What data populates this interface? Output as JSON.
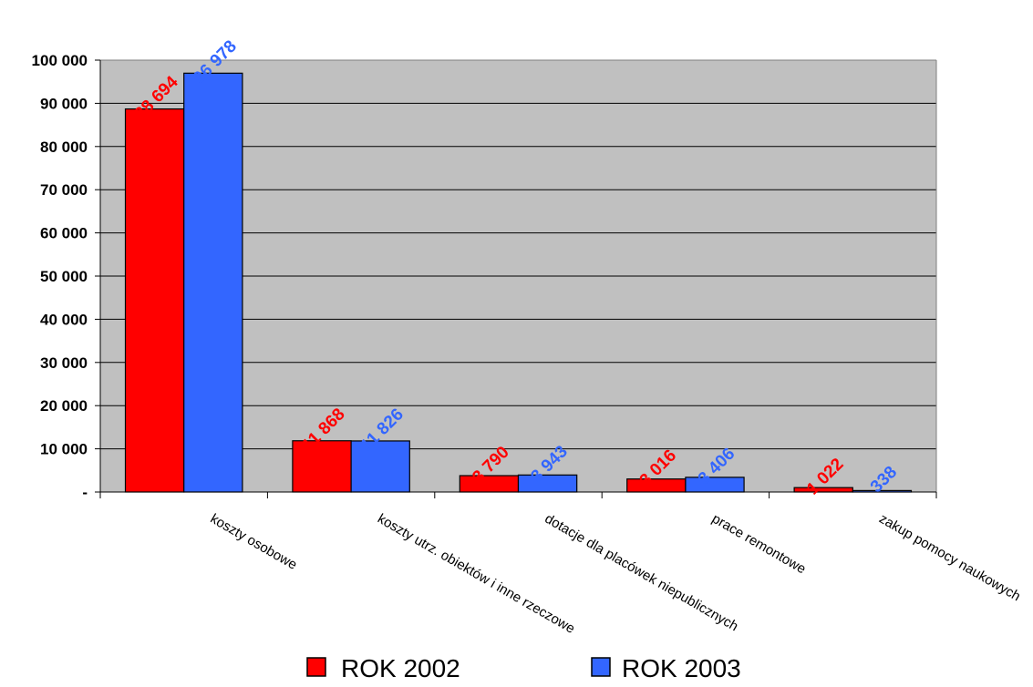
{
  "chart_data": {
    "type": "bar",
    "title": "",
    "xlabel": "",
    "ylabel": "",
    "categories": [
      "koszty osobowe",
      "koszty utrz. obiektów i inne rzeczowe",
      "dotacje dla placówek niepublicznych",
      "prace remontowe",
      "zakup pomocy naukowych"
    ],
    "series": [
      {
        "name": "ROK 2002",
        "color": "#ff0000",
        "values": [
          88694,
          11868,
          3790,
          3016,
          1022
        ],
        "labels": [
          "88 694",
          "11 868",
          "3 790",
          "3 016",
          "1 022"
        ]
      },
      {
        "name": "ROK 2003",
        "color": "#3366ff",
        "values": [
          96978,
          11826,
          3943,
          3406,
          338
        ],
        "labels": [
          "96 978",
          "11 826",
          "3 943",
          "3 406",
          "338"
        ]
      }
    ],
    "ylim": [
      0,
      100000
    ],
    "yticks": [
      0,
      10000,
      20000,
      30000,
      40000,
      50000,
      60000,
      70000,
      80000,
      90000,
      100000
    ],
    "ytick_labels": [
      "-",
      "10 000",
      "20 000",
      "30 000",
      "40 000",
      "50 000",
      "60 000",
      "70 000",
      "80 000",
      "90 000",
      "100 000"
    ],
    "grid": true,
    "plot_background": "#c0c0c0",
    "legend_position": "bottom"
  }
}
